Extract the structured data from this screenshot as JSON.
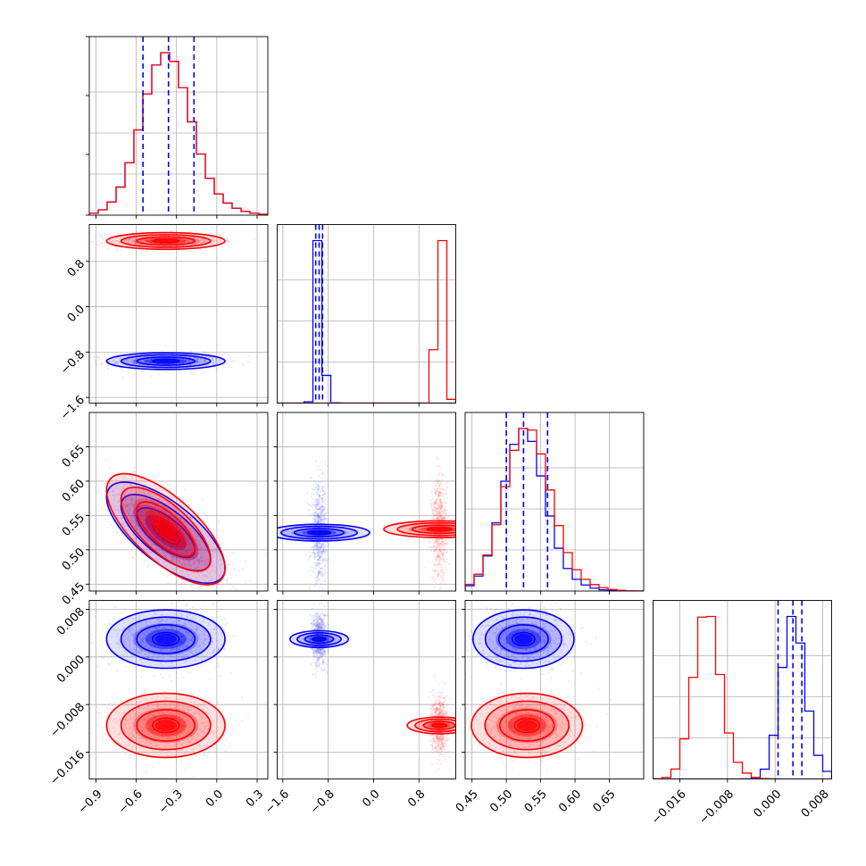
{
  "colors": {
    "series_a": "#0000ff",
    "series_b": "#ff0000",
    "grid": "#b0b0b0"
  },
  "chart_data": {
    "type": "corner",
    "grid": true,
    "params": [
      {
        "range": [
          -0.95,
          0.38
        ],
        "ticks": [
          -0.9,
          -0.6,
          -0.3,
          0.0,
          0.3
        ],
        "tick_labels": [
          "−0.9",
          "−0.6",
          "−0.3",
          "0.0",
          "0.3"
        ],
        "quantiles": {
          "series_a": [
            -0.55,
            -0.36,
            -0.17
          ]
        }
      },
      {
        "range": [
          -1.7,
          1.45
        ],
        "ticks": [
          -1.6,
          -0.8,
          0.0,
          0.8
        ],
        "tick_labels": [
          "−1.6",
          "−0.8",
          "0.0",
          "0.8"
        ],
        "quantiles": {
          "series_a": [
            -1.02,
            -0.96,
            -0.9
          ]
        }
      },
      {
        "range": [
          0.44,
          0.7
        ],
        "ticks": [
          0.45,
          0.5,
          0.55,
          0.6,
          0.65
        ],
        "tick_labels": [
          "0.45",
          "0.50",
          "0.55",
          "0.60",
          "0.65"
        ],
        "quantiles": {
          "series_a": [
            0.5,
            0.525,
            0.56
          ]
        }
      },
      {
        "range": [
          -0.0205,
          0.0095
        ],
        "ticks": [
          -0.016,
          -0.008,
          0.0,
          0.008
        ],
        "tick_labels": [
          "−0.016",
          "−0.008",
          "0.000",
          "0.008"
        ],
        "quantiles": {
          "series_a": [
            0.0005,
            0.003,
            0.0045
          ]
        }
      }
    ],
    "series": [
      {
        "color_key": "series_a",
        "mean": [
          -0.38,
          -0.96,
          0.525,
          0.003
        ],
        "std": [
          0.18,
          0.06,
          0.03,
          0.002
        ],
        "corr": [
          [
            0,
            1,
            0.0
          ],
          [
            0,
            2,
            -0.7
          ],
          [
            0,
            3,
            0.0
          ],
          [
            1,
            2,
            0.0
          ],
          [
            1,
            3,
            0.0
          ],
          [
            2,
            3,
            0.0
          ]
        ]
      },
      {
        "color_key": "series_b",
        "mean": [
          -0.38,
          1.16,
          0.53,
          -0.0115
        ],
        "std": [
          0.18,
          0.06,
          0.033,
          0.0022
        ],
        "corr": [
          [
            0,
            1,
            0.0
          ],
          [
            0,
            2,
            -0.7
          ],
          [
            0,
            3,
            0.0
          ],
          [
            1,
            2,
            0.0
          ],
          [
            1,
            3,
            0.0
          ],
          [
            2,
            3,
            0.0
          ]
        ]
      }
    ]
  }
}
